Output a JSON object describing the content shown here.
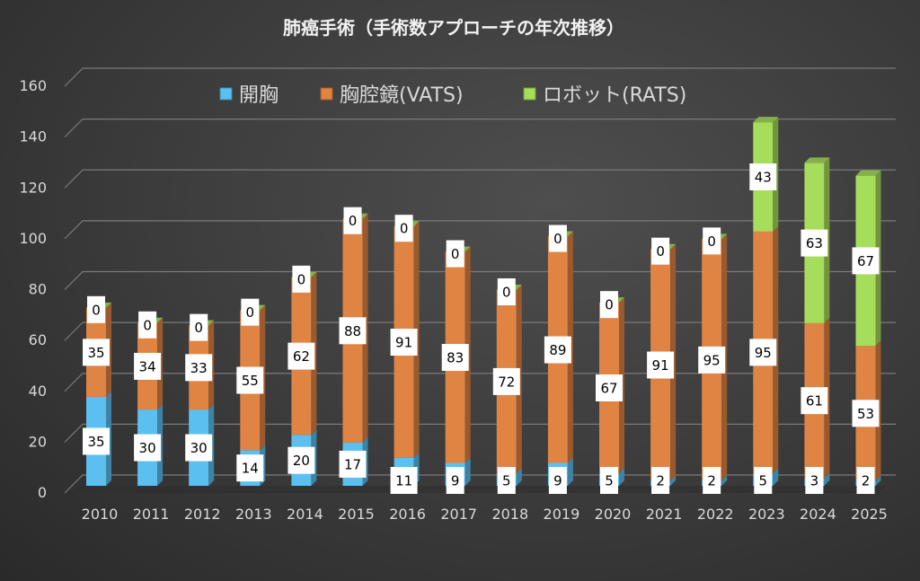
{
  "chart_data": {
    "type": "bar",
    "stacked": true,
    "style": "3d-column",
    "title": "肺癌手術（手術数アプローチの年次推移）",
    "xlabel": "",
    "ylabel": "",
    "ylim": [
      0,
      160
    ],
    "yticks": [
      0,
      20,
      40,
      60,
      80,
      100,
      120,
      140,
      160
    ],
    "grid": true,
    "legend_position": "top",
    "categories": [
      "2010",
      "2011",
      "2012",
      "2013",
      "2014",
      "2015",
      "2016",
      "2017",
      "2018",
      "2019",
      "2020",
      "2021",
      "2022",
      "2023",
      "2024",
      "2025"
    ],
    "series": [
      {
        "name": "開胸",
        "color": "#5bc0f0",
        "values": [
          35,
          30,
          30,
          14,
          20,
          17,
          11,
          9,
          5,
          9,
          5,
          2,
          2,
          5,
          3,
          2
        ]
      },
      {
        "name": "胸腔鏡(VATS)",
        "color": "#e08444",
        "values": [
          35,
          34,
          33,
          55,
          62,
          88,
          91,
          83,
          72,
          89,
          67,
          91,
          95,
          95,
          61,
          53
        ]
      },
      {
        "name": "ロボット(RATS)",
        "color": "#a6dd5a",
        "values": [
          0,
          0,
          0,
          0,
          0,
          0,
          0,
          0,
          0,
          0,
          0,
          0,
          0,
          43,
          63,
          67
        ]
      }
    ]
  }
}
